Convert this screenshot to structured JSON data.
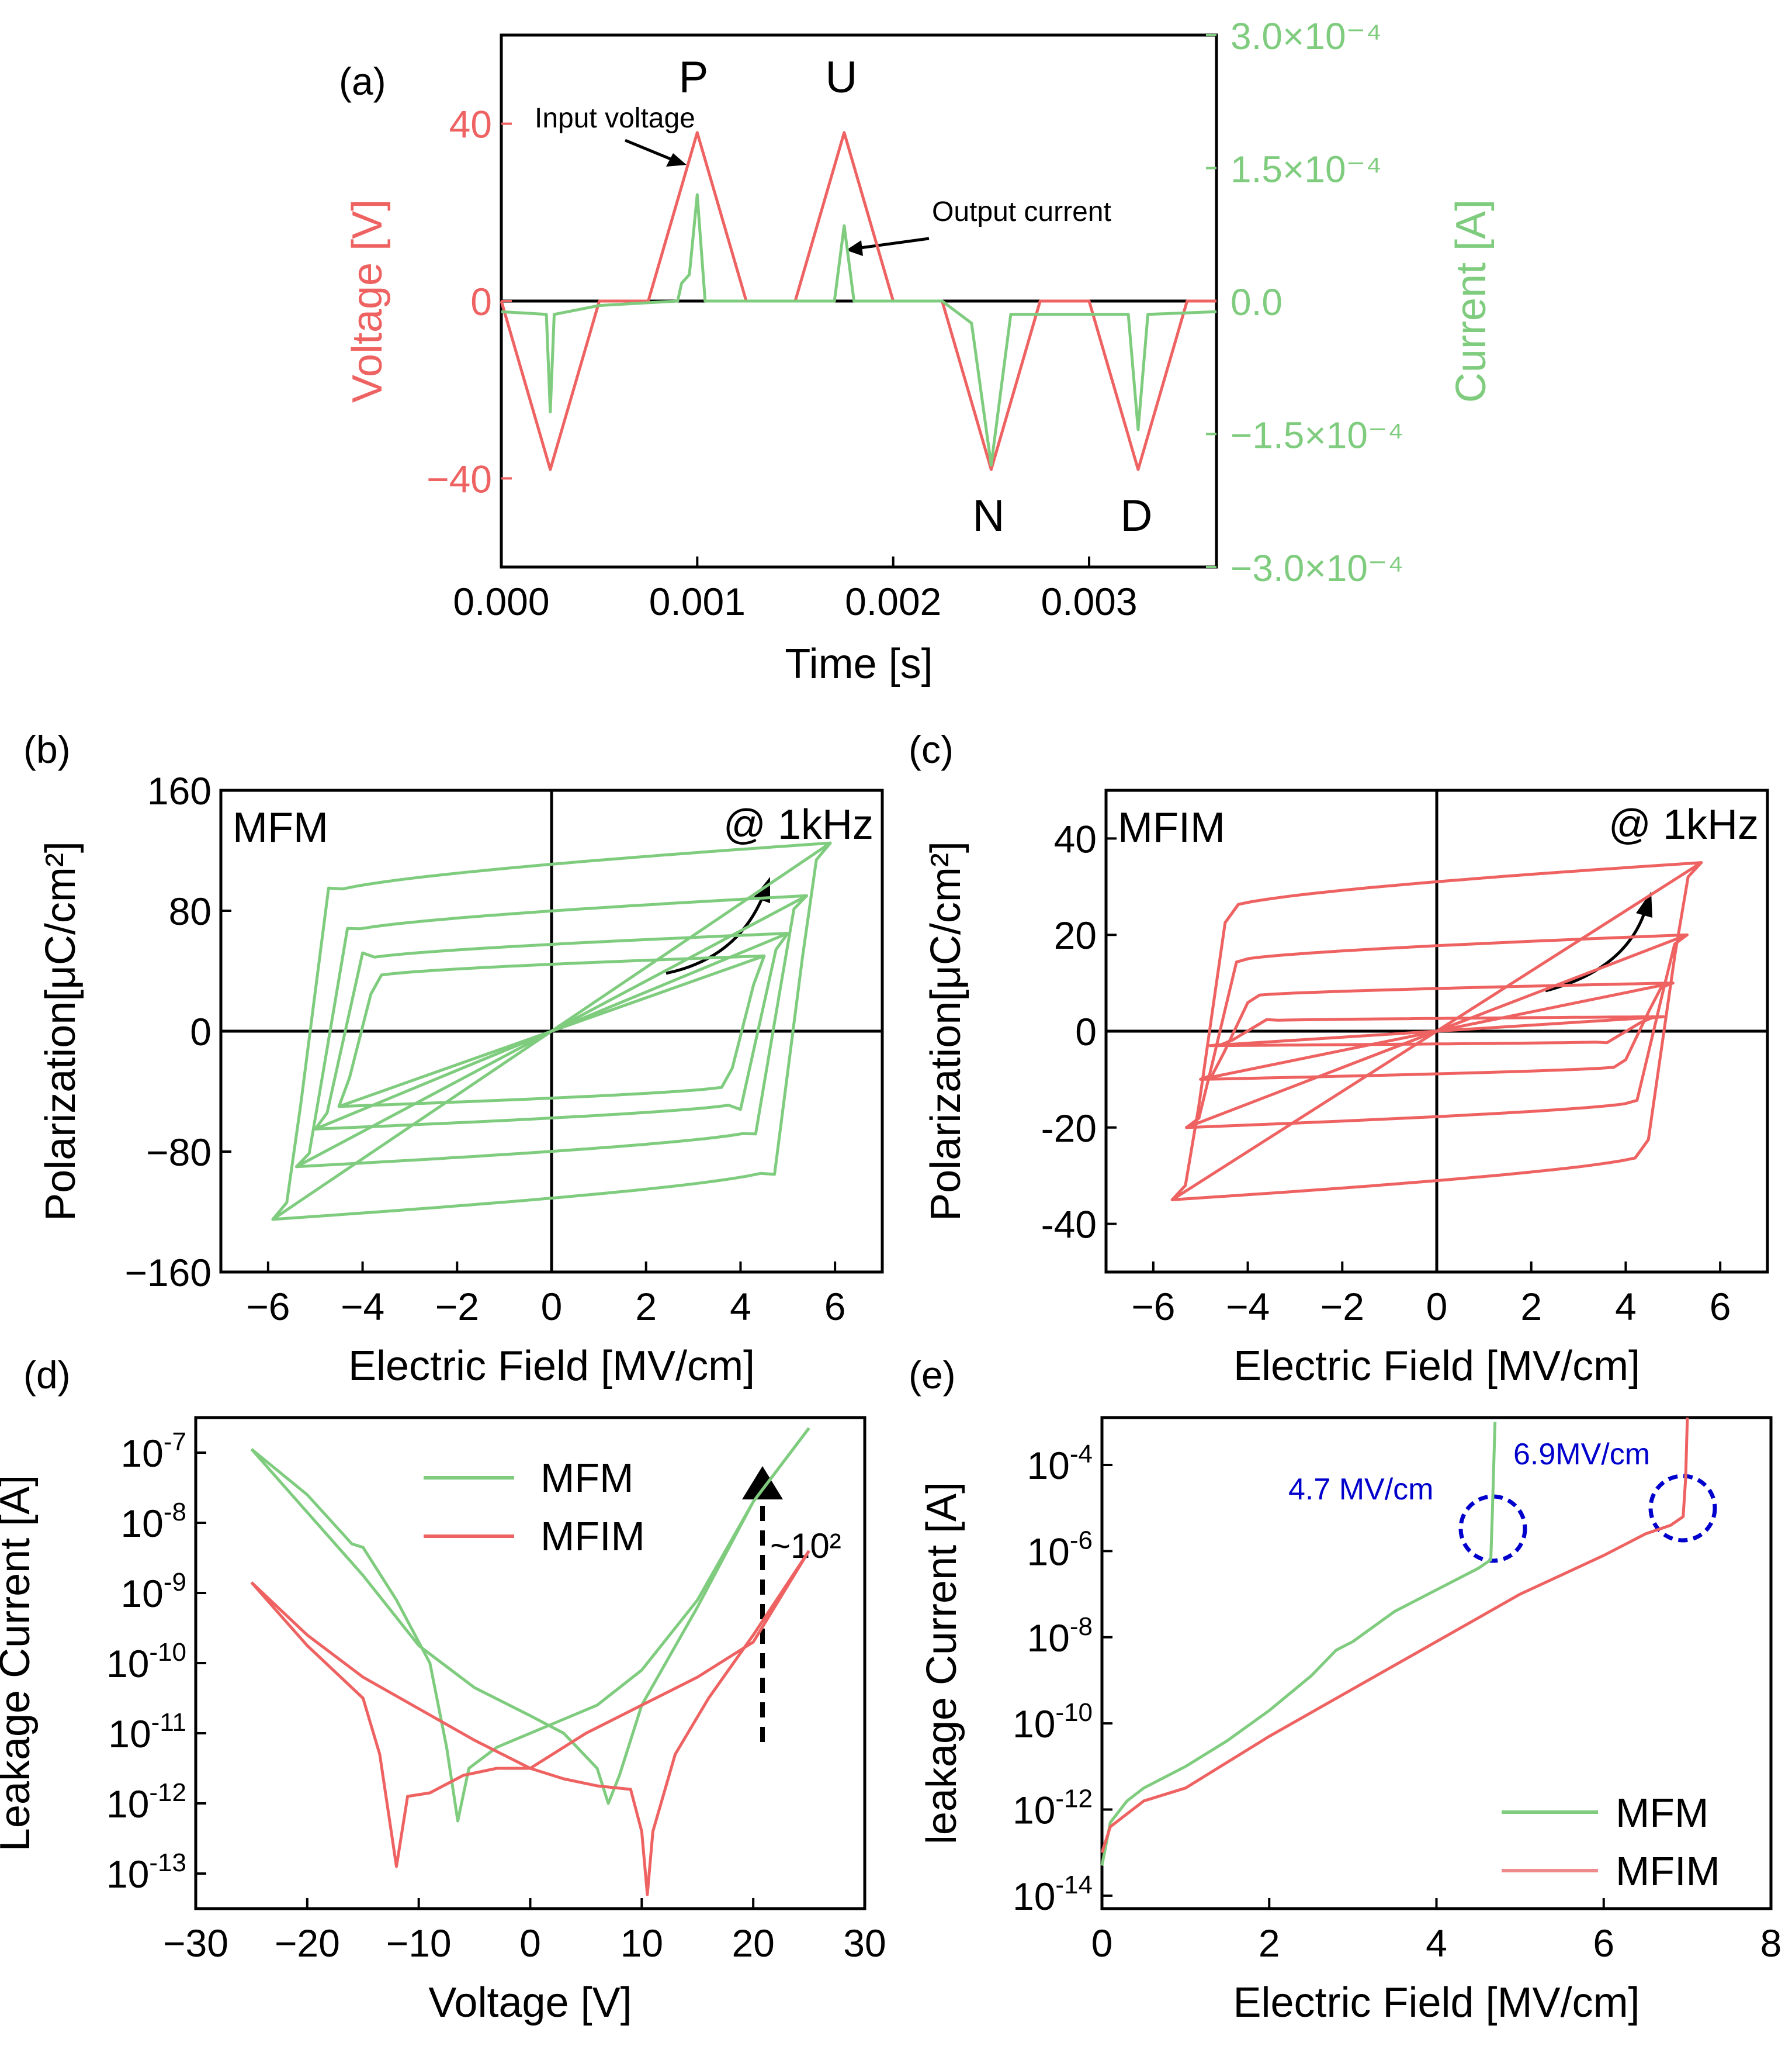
{
  "chart_data": [
    {
      "id": "a",
      "type": "line",
      "panel_label": "(a)",
      "xlabel": "Time [s]",
      "ylabel_left": "Voltage [V]",
      "ylabel_right": "Current [A]",
      "xlim": [
        0,
        0.00365
      ],
      "ylim_left": [
        -60,
        60
      ],
      "ylim_right": [
        -0.0003,
        0.0003
      ],
      "x_ticks": [
        0,
        0.001,
        0.002,
        0.003
      ],
      "x_tick_labels": [
        "0.000",
        "0.001",
        "0.002",
        "0.003"
      ],
      "y_left_ticks": [
        -40,
        0,
        40
      ],
      "y_left_tick_labels": [
        "−40",
        "0",
        "40"
      ],
      "y_right_ticks": [
        0.0003,
        0.00015,
        0,
        -0.00015,
        -0.0003
      ],
      "y_right_tick_labels": [
        "3.0×10⁻⁴",
        "1.5×10⁻⁴",
        "0.0",
        "−1.5×10⁻⁴",
        "−3.0×10⁻⁴"
      ],
      "left_color": "#ee6262",
      "right_color": "#7fcc7f",
      "pulse_labels": [
        "P",
        "U",
        "N",
        "D"
      ],
      "annotations": [
        "Input voltage",
        "Output current"
      ],
      "series": [
        {
          "name": "Input voltage",
          "axis": "left",
          "color": "#ee6262",
          "points": [
            [
              0,
              0
            ],
            [
              0.00025,
              -38
            ],
            [
              0.0005,
              0
            ],
            [
              0.00075,
              0
            ],
            [
              0.001,
              38
            ],
            [
              0.00125,
              0
            ],
            [
              0.0015,
              0
            ],
            [
              0.00175,
              38
            ],
            [
              0.002,
              0
            ],
            [
              0.00225,
              0
            ],
            [
              0.0025,
              -38
            ],
            [
              0.00275,
              0
            ],
            [
              0.003,
              0
            ],
            [
              0.00325,
              -38
            ],
            [
              0.0035,
              0
            ],
            [
              0.00365,
              0
            ]
          ]
        },
        {
          "name": "Output current",
          "axis": "right",
          "color": "#7fcc7f",
          "points": [
            [
              0,
              -1.2e-05
            ],
            [
              0.00023,
              -1.5e-05
            ],
            [
              0.00025,
              -0.000125
            ],
            [
              0.00027,
              -1.5e-05
            ],
            [
              0.0005,
              -5e-06
            ],
            [
              0.0009,
              0
            ],
            [
              0.00092,
              2e-05
            ],
            [
              0.00096,
              3e-05
            ],
            [
              0.001,
              0.00012
            ],
            [
              0.00104,
              0
            ],
            [
              0.0017,
              0
            ],
            [
              0.00175,
              8.5e-05
            ],
            [
              0.0018,
              0
            ],
            [
              0.00225,
              0
            ],
            [
              0.0024,
              -2.5e-05
            ],
            [
              0.0025,
              -0.000185
            ],
            [
              0.0026,
              -1.5e-05
            ],
            [
              0.0032,
              -1.5e-05
            ],
            [
              0.00325,
              -0.000145
            ],
            [
              0.0033,
              -1.5e-05
            ],
            [
              0.00365,
              -1.2e-05
            ]
          ]
        }
      ]
    },
    {
      "id": "b",
      "type": "line",
      "panel_label": "(b)",
      "xlabel": "Electric Field [MV/cm]",
      "ylabel": "Polarization[μC/cm²]",
      "xlim": [
        -7,
        7
      ],
      "ylim": [
        -160,
        160
      ],
      "x_ticks": [
        -6,
        -4,
        -2,
        0,
        2,
        4,
        6
      ],
      "x_tick_labels": [
        "−6",
        "−4",
        "−2",
        "0",
        "2",
        "4",
        "6"
      ],
      "y_ticks": [
        -160,
        -80,
        0,
        80,
        160
      ],
      "y_tick_labels": [
        "−160",
        "−80",
        "0",
        "80",
        "160"
      ],
      "inset_left": "MFM",
      "inset_right": "@ 1kHz",
      "color": "#7fcc7f",
      "loops": [
        {
          "emax": 4.5,
          "ps": 50,
          "ec": 4.3
        },
        {
          "emax": 5.0,
          "ps": 65,
          "ec": 4.6
        },
        {
          "emax": 5.4,
          "ps": 90,
          "ec": 4.9
        },
        {
          "emax": 5.9,
          "ps": 125,
          "ec": 5.3
        }
      ]
    },
    {
      "id": "c",
      "type": "line",
      "panel_label": "(c)",
      "xlabel": "Electric Field [MV/cm]",
      "ylabel": "Polarization[μC/cm²]",
      "xlim": [
        -7,
        7
      ],
      "ylim": [
        -50,
        50
      ],
      "x_ticks": [
        -6,
        -4,
        -2,
        0,
        2,
        4,
        6
      ],
      "x_tick_labels": [
        "−6",
        "−4",
        "−2",
        "0",
        "2",
        "4",
        "6"
      ],
      "y_ticks": [
        -40,
        -20,
        0,
        20,
        40
      ],
      "y_tick_labels": [
        "-40",
        "-20",
        "0",
        "20",
        "40"
      ],
      "inset_left": "MFIM",
      "inset_right": "@ 1kHz",
      "color": "#ee6262",
      "loops": [
        {
          "emax": 4.8,
          "ps": 3,
          "ec": 4.2
        },
        {
          "emax": 5.0,
          "ps": 10,
          "ec": 4.5
        },
        {
          "emax": 5.3,
          "ps": 20,
          "ec": 4.8
        },
        {
          "emax": 5.6,
          "ps": 35,
          "ec": 5.0
        }
      ]
    },
    {
      "id": "d",
      "type": "line",
      "panel_label": "(d)",
      "xlabel": "Voltage [V]",
      "ylabel": "Leakage Current [A]",
      "yscale": "log",
      "xlim": [
        -30,
        30
      ],
      "ylim_log10": [
        -13.5,
        -6.5
      ],
      "x_ticks": [
        -30,
        -20,
        -10,
        0,
        10,
        20,
        30
      ],
      "x_tick_labels": [
        "−30",
        "−20",
        "−10",
        "0",
        "10",
        "20",
        "30"
      ],
      "y_tick_exponents": [
        -13,
        -12,
        -11,
        -10,
        -9,
        -8,
        -7
      ],
      "y_tick_labels": [
        "-13",
        "-12",
        "-11",
        "-10",
        "-9",
        "-8",
        "-7"
      ],
      "annotation": "~10²",
      "legend": [
        "MFM",
        "MFIM"
      ],
      "series": [
        {
          "name": "MFM",
          "color": "#7fcc7f",
          "points": [
            [
              -25,
              -6.95
            ],
            [
              -20,
              -7.6
            ],
            [
              -16,
              -8.3
            ],
            [
              -15,
              -8.35
            ],
            [
              -12,
              -9.1
            ],
            [
              -9,
              -10.0
            ],
            [
              -7.5,
              -11.2
            ],
            [
              -6.5,
              -12.25
            ],
            [
              -5.5,
              -11.5
            ],
            [
              -3,
              -11.2
            ],
            [
              0,
              -11.0
            ],
            [
              3,
              -10.8
            ],
            [
              6,
              -10.6
            ],
            [
              10,
              -10.1
            ],
            [
              15,
              -9.1
            ],
            [
              20,
              -7.7
            ],
            [
              25,
              -6.65
            ]
          ]
        },
        {
          "name": "MFM",
          "color": "#7fcc7f",
          "points": [
            [
              -25,
              -6.95
            ],
            [
              -20,
              -7.85
            ],
            [
              -15,
              -8.75
            ],
            [
              -10,
              -9.75
            ],
            [
              -5,
              -10.35
            ],
            [
              0,
              -10.75
            ],
            [
              3,
              -11.0
            ],
            [
              6,
              -11.5
            ],
            [
              7,
              -12.0
            ],
            [
              8,
              -11.6
            ],
            [
              10,
              -10.6
            ],
            [
              15,
              -9.2
            ],
            [
              20,
              -7.7
            ],
            [
              25,
              -6.65
            ]
          ]
        },
        {
          "name": "MFIM",
          "color": "#ee6262",
          "points": [
            [
              -25,
              -8.85
            ],
            [
              -20,
              -9.75
            ],
            [
              -15,
              -10.5
            ],
            [
              -13.5,
              -11.3
            ],
            [
              -12,
              -12.9
            ],
            [
              -11,
              -11.9
            ],
            [
              -9,
              -11.85
            ],
            [
              -6,
              -11.6
            ],
            [
              -3,
              -11.5
            ],
            [
              0,
              -11.5
            ],
            [
              3,
              -11.65
            ],
            [
              6,
              -11.75
            ],
            [
              9,
              -11.8
            ],
            [
              10,
              -12.4
            ],
            [
              10.5,
              -13.3
            ],
            [
              11,
              -12.4
            ],
            [
              13,
              -11.3
            ],
            [
              16,
              -10.5
            ],
            [
              20,
              -9.6
            ],
            [
              25,
              -8.4
            ]
          ]
        },
        {
          "name": "MFIM",
          "color": "#ee6262",
          "points": [
            [
              -25,
              -8.85
            ],
            [
              -20,
              -9.6
            ],
            [
              -15,
              -10.2
            ],
            [
              -10,
              -10.65
            ],
            [
              -5,
              -11.1
            ],
            [
              0,
              -11.5
            ],
            [
              5,
              -11.0
            ],
            [
              10,
              -10.6
            ],
            [
              15,
              -10.2
            ],
            [
              20,
              -9.7
            ],
            [
              25,
              -8.4
            ]
          ]
        }
      ]
    },
    {
      "id": "e",
      "type": "line",
      "panel_label": "(e)",
      "xlabel": "Electric Field [MV/cm]",
      "ylabel": "leakage Current [A]",
      "yscale": "log",
      "xlim": [
        0,
        8
      ],
      "ylim_log10": [
        -14.3,
        -2.9
      ],
      "x_ticks": [
        0,
        2,
        4,
        6,
        8
      ],
      "x_tick_labels": [
        "0",
        "2",
        "4",
        "6",
        "8"
      ],
      "y_tick_exponents": [
        -14,
        -12,
        -10,
        -8,
        -6,
        -4
      ],
      "y_tick_labels": [
        "-14",
        "-12",
        "-10",
        "-8",
        "-6",
        "-4"
      ],
      "annotations": [
        "4.7 MV/cm",
        "6.9MV/cm"
      ],
      "legend": [
        "MFM",
        "MFIM"
      ],
      "series": [
        {
          "name": "MFM",
          "color": "#7fcc7f",
          "points": [
            [
              0,
              -13.3
            ],
            [
              0.1,
              -12.3
            ],
            [
              0.3,
              -11.8
            ],
            [
              0.5,
              -11.5
            ],
            [
              1,
              -11.0
            ],
            [
              1.5,
              -10.4
            ],
            [
              2,
              -9.7
            ],
            [
              2.5,
              -8.9
            ],
            [
              2.8,
              -8.3
            ],
            [
              3,
              -8.1
            ],
            [
              3.5,
              -7.4
            ],
            [
              4,
              -6.9
            ],
            [
              4.5,
              -6.4
            ],
            [
              4.65,
              -6.2
            ],
            [
              4.67,
              -5.0
            ],
            [
              4.7,
              -3.0
            ]
          ]
        },
        {
          "name": "MFIM",
          "color": "#ee6262",
          "points": [
            [
              0,
              -13.0
            ],
            [
              0.1,
              -12.4
            ],
            [
              0.3,
              -12.1
            ],
            [
              0.5,
              -11.8
            ],
            [
              1,
              -11.5
            ],
            [
              1.5,
              -10.9
            ],
            [
              2,
              -10.3
            ],
            [
              3,
              -9.2
            ],
            [
              4,
              -8.1
            ],
            [
              5,
              -7.0
            ],
            [
              6,
              -6.1
            ],
            [
              6.3,
              -5.8
            ],
            [
              6.5,
              -5.6
            ],
            [
              6.8,
              -5.4
            ],
            [
              6.95,
              -5.2
            ],
            [
              6.98,
              -4.3
            ],
            [
              7.0,
              -2.9
            ]
          ]
        }
      ]
    }
  ]
}
